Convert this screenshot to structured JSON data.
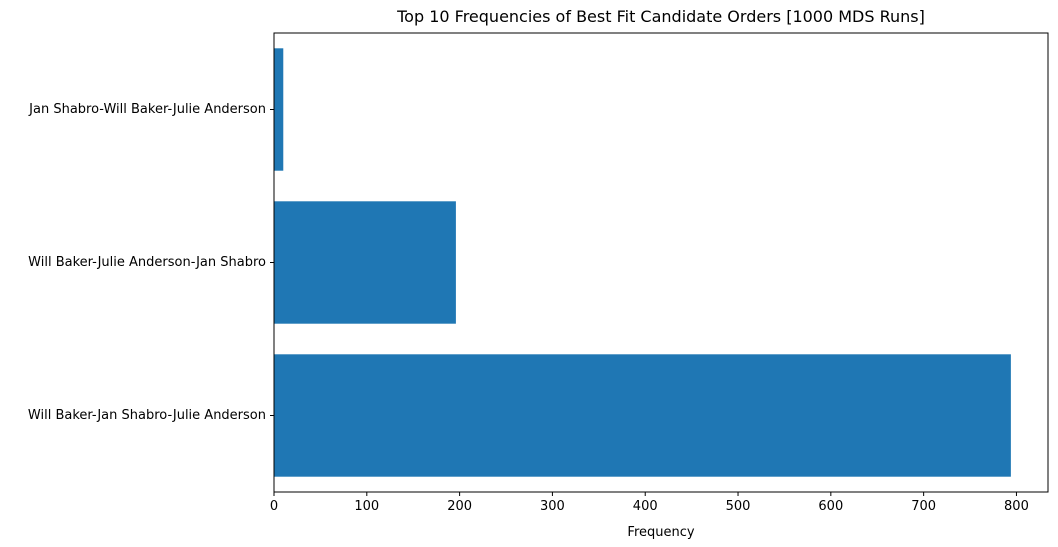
{
  "chart_data": {
    "type": "bar",
    "orientation": "horizontal",
    "title": "Top 10 Frequencies of Best Fit Candidate Orders [1000 MDS Runs]",
    "xlabel": "Frequency",
    "ylabel": "",
    "categories": [
      "Will Baker-Jan Shabro-Julie Anderson",
      "Will Baker-Julie Anderson-Jan Shabro",
      "Jan Shabro-Will Baker-Julie Anderson"
    ],
    "values": [
      794,
      196,
      10
    ],
    "xlim": [
      0,
      834
    ],
    "xticks": [
      0,
      100,
      200,
      300,
      400,
      500,
      600,
      700,
      800
    ],
    "grid": false,
    "legend": "none",
    "bar_color": "#1f77b4"
  }
}
